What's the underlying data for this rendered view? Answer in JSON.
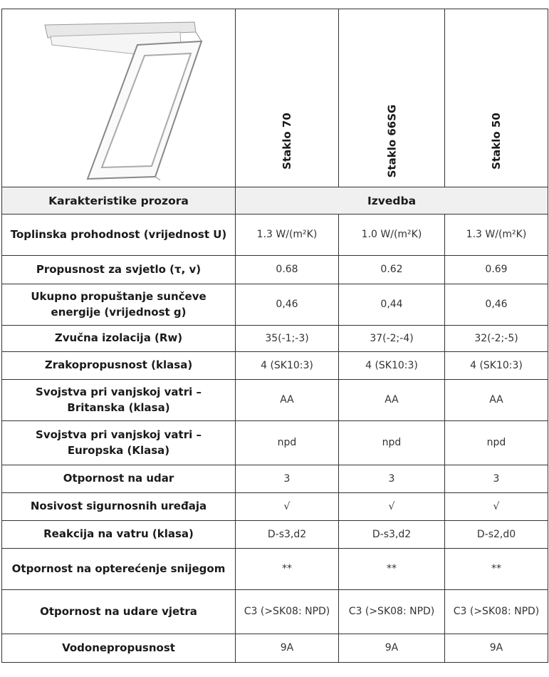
{
  "header": {
    "columns": [
      "Staklo 70",
      "Staklo 66SG",
      "Staklo 50"
    ]
  },
  "section": {
    "label": "Karakteristike prozora",
    "value": "Izvedba"
  },
  "rows": [
    [
      "Toplinska prohodnost (vrijednost U)",
      "1.3 W/(m²K)",
      "1.0 W/(m²K)",
      "1.3 W/(m²K)"
    ],
    [
      "Propusnost za svjetlo (τ, v)",
      "0.68",
      "0.62",
      "0.69"
    ],
    [
      "Ukupno propuštanje sunčeve energije (vrijednost g)",
      "0,46",
      "0,44",
      "0,46"
    ],
    [
      "Zvučna izolacija (Rw)",
      "35(-1;-3)",
      "37(-2;-4)",
      "32(-2;-5)"
    ],
    [
      "Zrakopropusnost (klasa)",
      "4 (SK10:3)",
      "4 (SK10:3)",
      "4 (SK10:3)"
    ],
    [
      "Svojstva pri vanjskoj vatri – Britanska (klasa)",
      "AA",
      "AA",
      "AA"
    ],
    [
      "Svojstva pri vanjskoj vatri – Europska (Klasa)",
      "npd",
      "npd",
      "npd"
    ],
    [
      "Otpornost na udar",
      "3",
      "3",
      "3"
    ],
    [
      "Nosivost sigurnosnih uređaja",
      "√",
      "√",
      "√"
    ],
    [
      "Reakcija na vatru (klasa)",
      "D-s3,d2",
      "D-s3,d2",
      "D-s2,d0"
    ],
    [
      "Otpornost na opterećenje snijegom",
      "**",
      "**",
      "**"
    ],
    [
      "Otpornost na udare vjetra",
      "C3 (>SK08: NPD)",
      "C3 (>SK08: NPD)",
      "C3 (>SK08: NPD)"
    ],
    [
      "Vodonepropusnost",
      "9A",
      "9A",
      "9A"
    ]
  ]
}
